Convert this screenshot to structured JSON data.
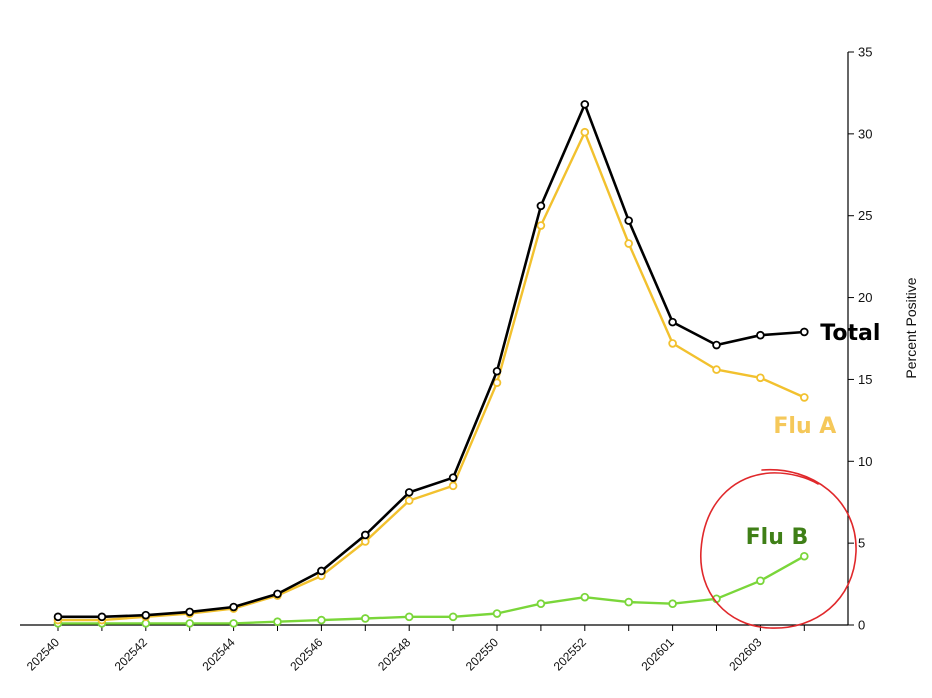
{
  "chart_data": {
    "type": "line",
    "x": [
      "202540",
      "202541",
      "202542",
      "202543",
      "202544",
      "202545",
      "202546",
      "202547",
      "202548",
      "202549",
      "202550",
      "202551",
      "202552",
      "202553",
      "202601",
      "202602",
      "202603",
      "202604"
    ],
    "tick_labels": [
      "202540",
      "202542",
      "202544",
      "202546",
      "202548",
      "202550",
      "202552",
      "202601",
      "202603"
    ],
    "y_ticks": [
      "0",
      "5",
      "10",
      "15",
      "20",
      "25",
      "30",
      "35"
    ],
    "ylim": [
      0,
      35
    ],
    "ylabel": "Percent Positive",
    "xlabel": "",
    "title": "",
    "grid": false,
    "y_axis_position": "right",
    "series": [
      {
        "name": "Total",
        "color": "#000000",
        "values": [
          0.5,
          0.5,
          0.6,
          0.8,
          1.1,
          1.9,
          3.3,
          5.5,
          8.1,
          9.0,
          15.5,
          25.6,
          31.8,
          24.7,
          18.5,
          17.1,
          17.7,
          17.9
        ]
      },
      {
        "name": "Flu A",
        "color": "#f2c12e",
        "label_color": "#f5c85a",
        "values": [
          0.3,
          0.3,
          0.5,
          0.7,
          1.0,
          1.8,
          3.0,
          5.1,
          7.6,
          8.5,
          14.8,
          24.4,
          30.1,
          23.3,
          17.2,
          15.6,
          15.1,
          13.9
        ]
      },
      {
        "name": "Flu B",
        "color": "#7ad63a",
        "label_color": "#3f7f17",
        "values": [
          0.1,
          0.1,
          0.1,
          0.1,
          0.1,
          0.2,
          0.3,
          0.4,
          0.5,
          0.5,
          0.7,
          1.3,
          1.7,
          1.4,
          1.3,
          1.6,
          2.7,
          4.2
        ]
      }
    ],
    "annotation": {
      "type": "hand-drawn-circle",
      "color": "#e0282b",
      "around": "Flu B series end"
    }
  }
}
